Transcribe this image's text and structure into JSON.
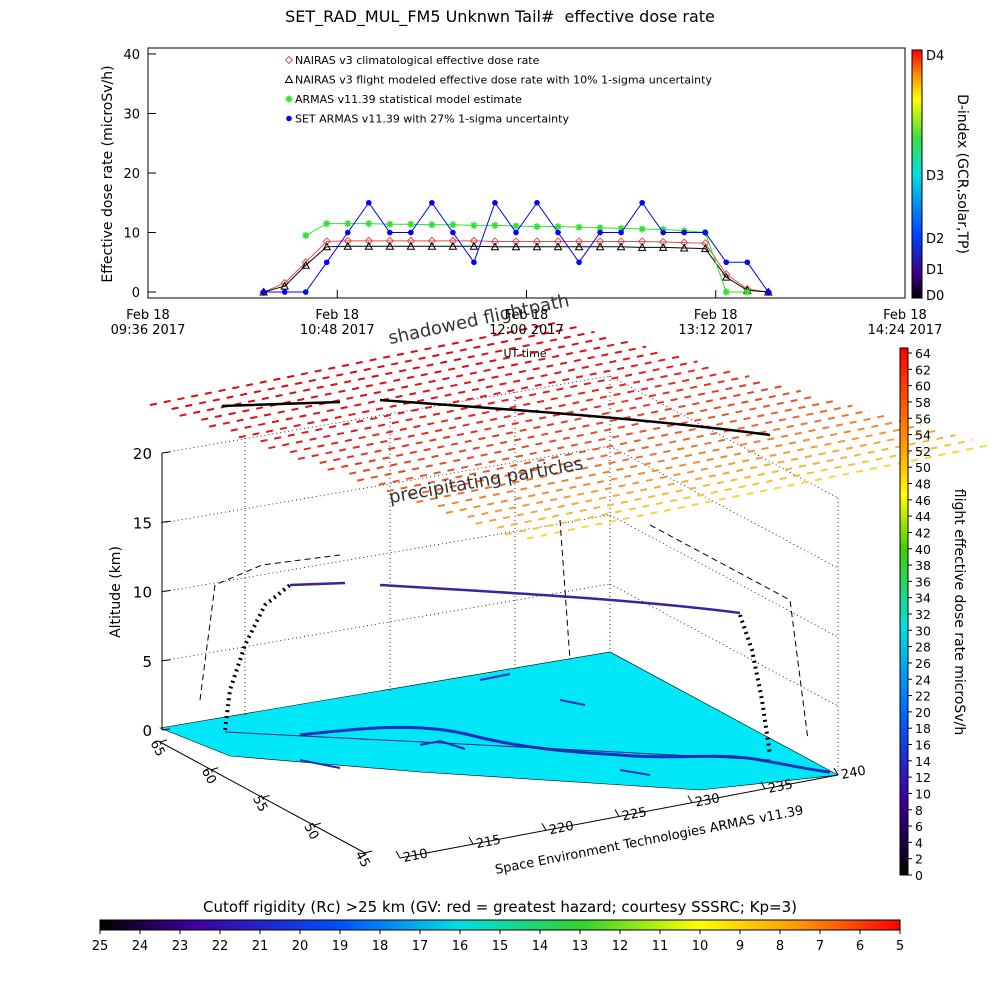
{
  "chart_data": [
    {
      "type": "scatter",
      "title": "SET_RAD_MUL_FM5 Unknwn Tail#  effective dose rate",
      "xlabel": "UT time",
      "ylabel": "Effective dose rate (microSv/h)",
      "x": [
        "2017-02-18T10:20",
        "2017-02-18T10:28",
        "2017-02-18T10:36",
        "2017-02-18T10:44",
        "2017-02-18T10:52",
        "2017-02-18T11:00",
        "2017-02-18T11:08",
        "2017-02-18T11:16",
        "2017-02-18T11:24",
        "2017-02-18T11:32",
        "2017-02-18T11:40",
        "2017-02-18T11:48",
        "2017-02-18T11:56",
        "2017-02-18T12:04",
        "2017-02-18T12:12",
        "2017-02-18T12:20",
        "2017-02-18T12:28",
        "2017-02-18T12:36",
        "2017-02-18T12:44",
        "2017-02-18T12:52",
        "2017-02-18T13:00",
        "2017-02-18T13:08",
        "2017-02-18T13:16",
        "2017-02-18T13:24",
        "2017-02-18T13:32"
      ],
      "series": [
        {
          "name": "NAIRAS v3 climatological effective dose rate",
          "color": "#e05050",
          "marker": "diamond",
          "values": [
            0,
            1.5,
            5,
            8.5,
            8.6,
            8.6,
            8.6,
            8.6,
            8.6,
            8.6,
            8.6,
            8.5,
            8.5,
            8.5,
            8.5,
            8.5,
            8.5,
            8.5,
            8.5,
            8.4,
            8.3,
            8.2,
            3,
            0.5,
            0
          ]
        },
        {
          "name": "NAIRAS v3 flight modeled effective dose rate with 10% 1-sigma uncertainty",
          "color": "#000000",
          "marker": "triangle",
          "values": [
            0,
            1,
            4.5,
            7.6,
            7.7,
            7.7,
            7.7,
            7.7,
            7.7,
            7.7,
            7.7,
            7.6,
            7.6,
            7.6,
            7.6,
            7.6,
            7.6,
            7.6,
            7.5,
            7.5,
            7.4,
            7.3,
            2.5,
            0.3,
            0
          ]
        },
        {
          "name": "ARMAS v11.39 statistical model estimate",
          "color": "#30e030",
          "marker": "star",
          "values": [
            null,
            null,
            9.5,
            11.5,
            11.5,
            11.5,
            11.4,
            11.4,
            11.3,
            11.3,
            11.2,
            11.2,
            11.1,
            11,
            11,
            10.9,
            10.8,
            10.7,
            10.6,
            10.5,
            10.3,
            10,
            0,
            0,
            null
          ]
        },
        {
          "name": "SET ARMAS v11.39 with 27% 1-sigma uncertainty",
          "color": "#0000ff",
          "marker": "circle",
          "values": [
            0,
            0,
            0,
            5,
            10,
            15,
            10,
            10,
            15,
            10,
            5,
            15,
            10,
            15,
            10,
            5,
            10,
            10,
            15,
            10,
            10,
            10,
            5,
            5,
            0
          ]
        }
      ],
      "xlim": [
        "2017-02-18T09:36",
        "2017-02-18T14:24"
      ],
      "xticks": [
        {
          "value": "2017-02-18T09:36",
          "label": "Feb 18\n09:36 2017"
        },
        {
          "value": "2017-02-18T10:48",
          "label": "Feb 18\n10:48 2017"
        },
        {
          "value": "2017-02-18T12:00",
          "label": "Feb 18\n12:00 2017"
        },
        {
          "value": "2017-02-18T13:12",
          "label": "Feb 18\n13:12 2017"
        },
        {
          "value": "2017-02-18T14:24",
          "label": "Feb 18\n14:24 2017"
        }
      ],
      "ylim": [
        -1,
        41
      ],
      "yticks": [
        0,
        10,
        20,
        30,
        40
      ],
      "colorbar": {
        "label": "D-index (GCR,solar,TP)",
        "ticks": [
          "D0",
          "D1",
          "D2",
          "D3",
          "D4"
        ]
      }
    },
    {
      "type": "surface3d",
      "annotations": [
        "shadowed flightpath",
        "precipitating particles"
      ],
      "zlabel": "Altitude (km)",
      "xlabel": "Space Environment Technologies ARMAS v11.39",
      "zlim": [
        0,
        20
      ],
      "zticks": [
        0,
        5,
        10,
        15,
        20
      ],
      "xlim": [
        210,
        240
      ],
      "xticks": [
        210,
        215,
        220,
        225,
        230,
        235,
        240
      ],
      "ylim": [
        65,
        45
      ],
      "yticks": [
        65,
        60,
        55,
        50,
        45
      ],
      "colorbar": {
        "label": "flight effective dose rate microSv/h",
        "lim": [
          0,
          64
        ],
        "ticks": [
          0,
          2,
          4,
          6,
          8,
          10,
          12,
          14,
          16,
          18,
          20,
          22,
          24,
          26,
          28,
          30,
          32,
          34,
          36,
          38,
          40,
          42,
          44,
          46,
          48,
          50,
          52,
          54,
          56,
          58,
          60,
          62,
          64
        ]
      },
      "ground_colorbar": {
        "label": "Cutoff rigidity (Rc) >25 km (GV: red = greatest hazard; courtesy SSSRC; Kp=3)",
        "lim": [
          25,
          5
        ],
        "ticks": [
          25,
          24,
          23,
          22,
          21,
          20,
          19,
          18,
          17,
          16,
          15,
          14,
          13,
          12,
          11,
          10,
          9,
          8,
          7,
          6,
          5
        ]
      }
    }
  ]
}
